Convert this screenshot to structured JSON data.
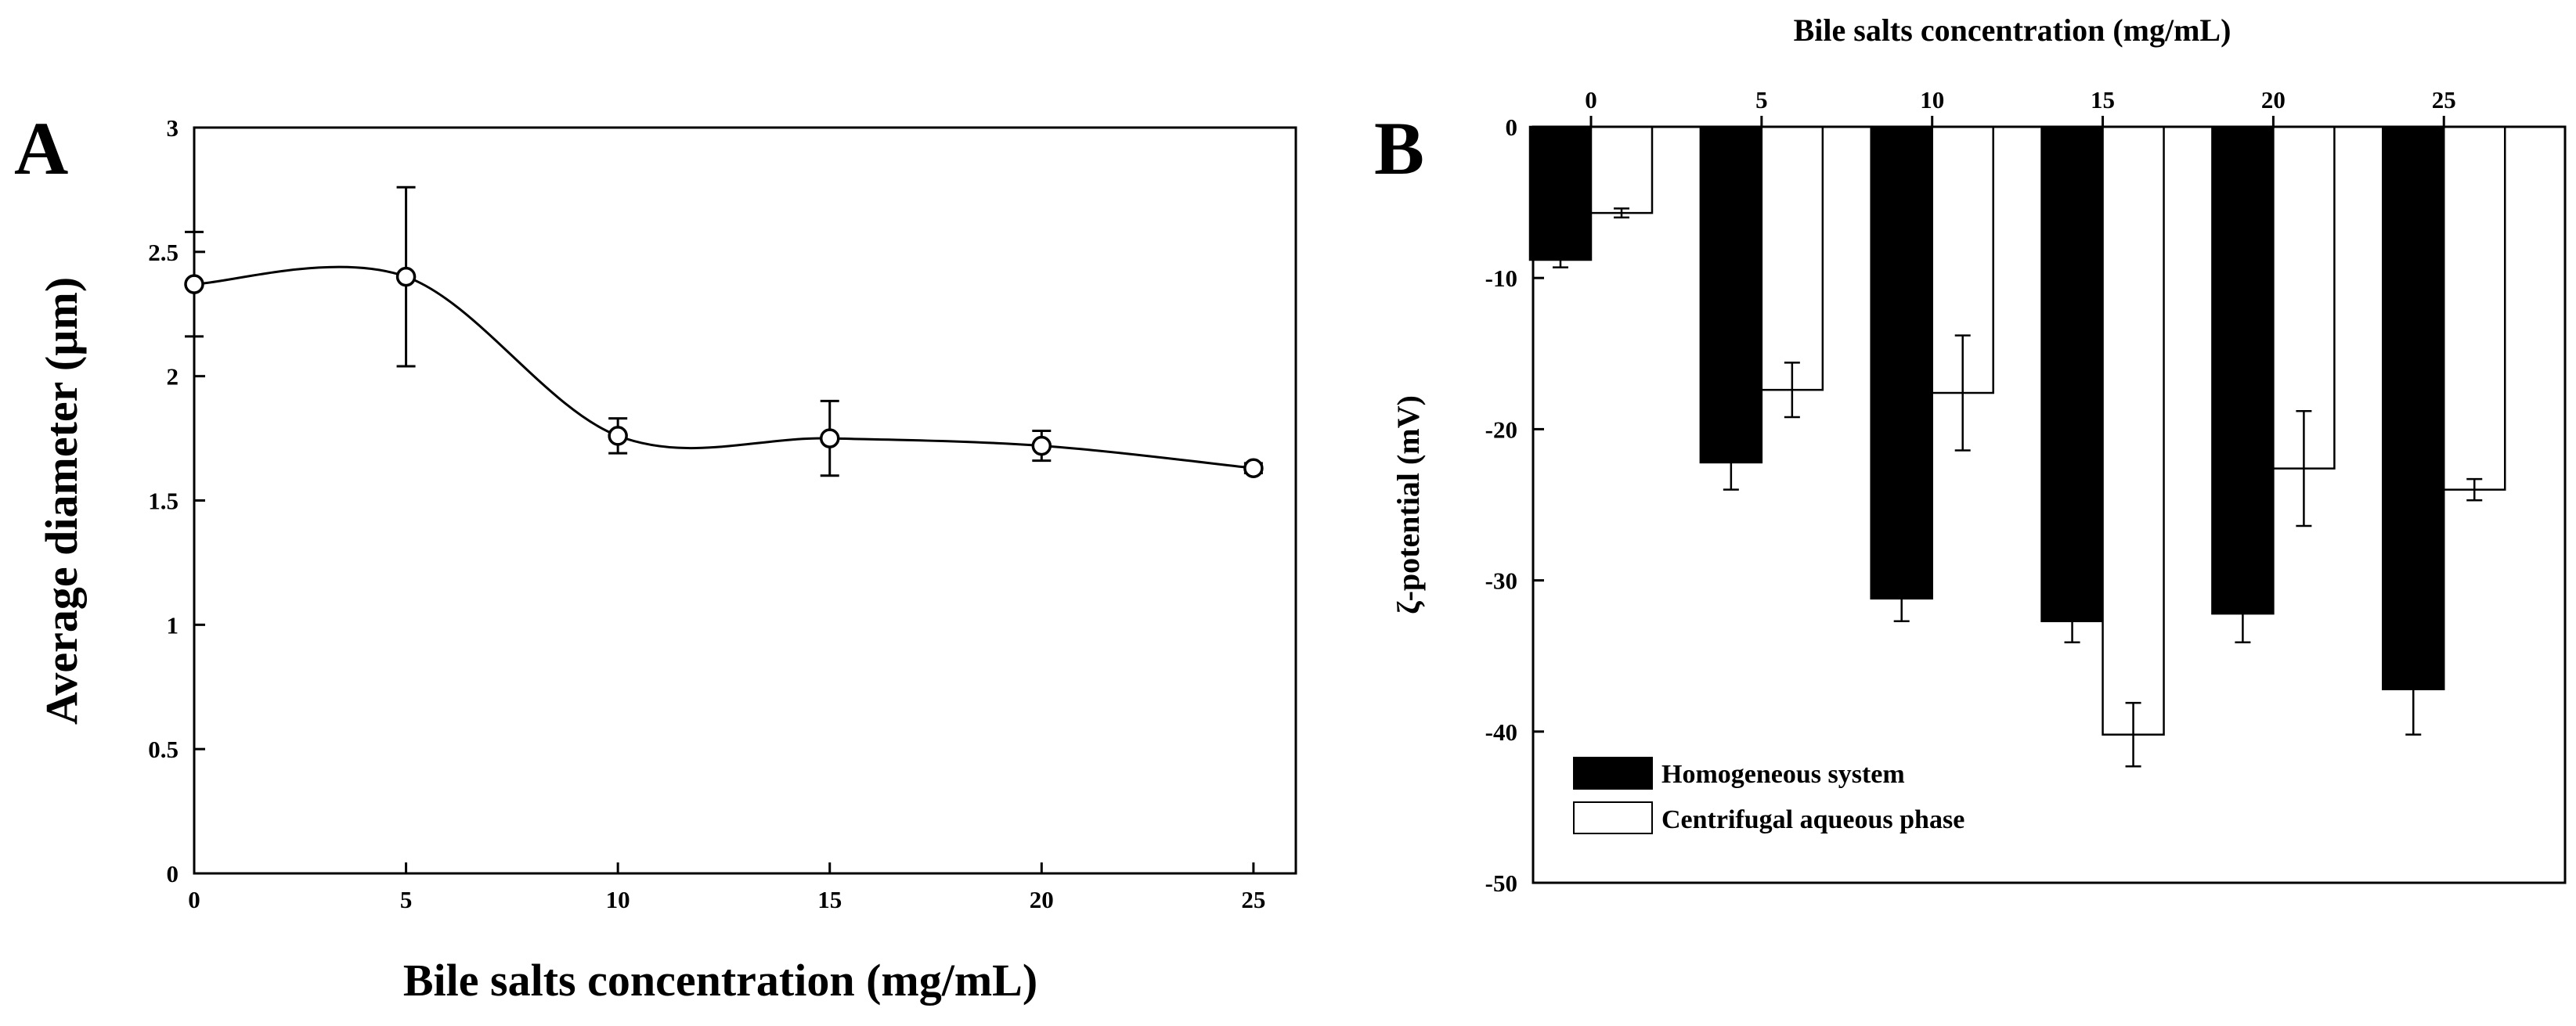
{
  "chart_data": [
    {
      "panel": "A",
      "type": "line",
      "marker": "open-circle",
      "smooth": true,
      "x": [
        0,
        5,
        10,
        15,
        20,
        25
      ],
      "y": [
        2.37,
        2.4,
        1.76,
        1.75,
        1.72,
        1.63
      ],
      "yerr": [
        0.21,
        0.36,
        0.07,
        0.15,
        0.06,
        0.02
      ],
      "xlabel": "Bile salts concentration (mg/mL)",
      "ylabel": "Average diameter (µm)",
      "xlim": [
        0,
        26
      ],
      "ylim": [
        0,
        3
      ],
      "xticks": [
        "0",
        "5",
        "10",
        "15",
        "20",
        "25"
      ],
      "yticks": [
        "0",
        "0.5",
        "1",
        "1.5",
        "2",
        "2.5",
        "3"
      ],
      "grid": false
    },
    {
      "panel": "B",
      "type": "bar",
      "categories": [
        "0",
        "5",
        "10",
        "15",
        "20",
        "25"
      ],
      "series": [
        {
          "name": "Homogeneous system",
          "color": "#000000",
          "values": [
            -8.8,
            -22.2,
            -31.2,
            -32.7,
            -32.2,
            -37.2
          ],
          "err": [
            0.5,
            1.8,
            1.5,
            1.4,
            1.9,
            3.0
          ]
        },
        {
          "name": "Centrifugal aqueous phase",
          "color": "#ffffff",
          "values": [
            -5.7,
            -17.4,
            -17.6,
            -40.2,
            -22.6,
            -24.0
          ],
          "err": [
            0.3,
            1.8,
            3.8,
            2.1,
            3.8,
            0.7
          ]
        }
      ],
      "xlabel": "Bile salts concentration (mg/mL)",
      "ylabel": "ζ-potential (mV)",
      "xaxis_position": "top",
      "ylim": [
        -50,
        0
      ],
      "yticks": [
        "0",
        "-10",
        "-20",
        "-30",
        "-40",
        "-50"
      ],
      "legend_position": "bottom-left",
      "grid": false
    }
  ]
}
